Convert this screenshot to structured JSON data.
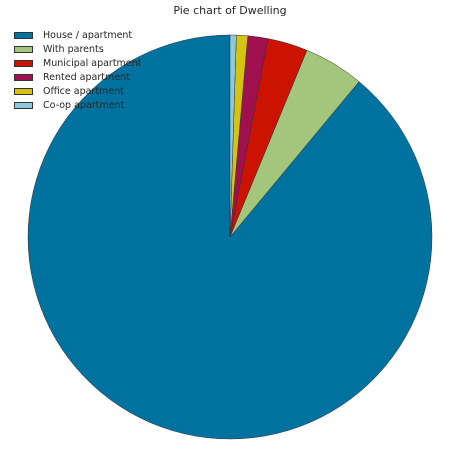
{
  "chart_data": {
    "type": "pie",
    "title": "Pie chart of Dwelling",
    "labels": [
      "House / apartment",
      "With parents",
      "Municipal apartment",
      "Rented apartment",
      "Office apartment",
      "Co-op apartment"
    ],
    "values": [
      88.7,
      4.8,
      3.2,
      1.6,
      0.9,
      0.5
    ],
    "colors": [
      "#0072a0",
      "#a3c57c",
      "#cc1200",
      "#a1104e",
      "#d4c411",
      "#8ec8dc"
    ],
    "start_angle_deg": 90,
    "direction": "counterclockwise",
    "legend_position": "top-left"
  }
}
